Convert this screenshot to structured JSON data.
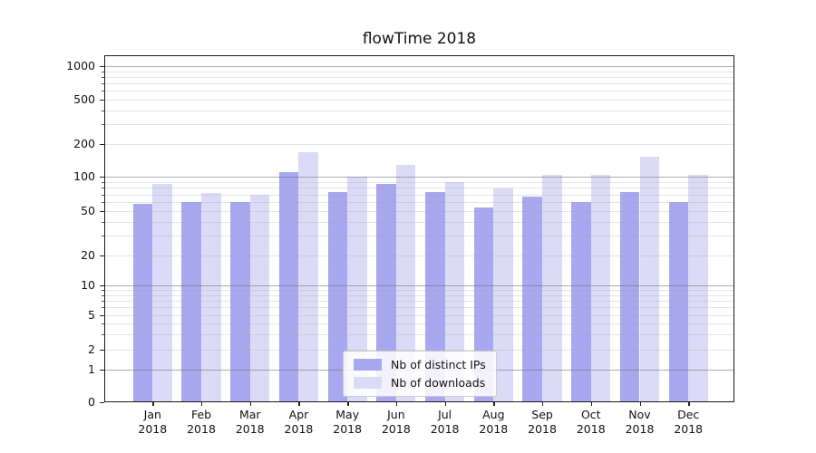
{
  "chart_data": {
    "type": "bar",
    "title": "flowTime 2018",
    "xlabel": "",
    "ylabel": "",
    "yscale": "symlog",
    "grid": "horizontal major+minor, drawn over bars",
    "yticks": [
      0,
      1,
      2,
      5,
      10,
      20,
      50,
      100,
      200,
      500,
      1000
    ],
    "ylim": [
      0,
      1300
    ],
    "categories": [
      "Jan 2018",
      "Feb 2018",
      "Mar 2018",
      "Apr 2018",
      "May 2018",
      "Jun 2018",
      "Jul 2018",
      "Aug 2018",
      "Sep 2018",
      "Oct 2018",
      "Nov 2018",
      "Dec 2018"
    ],
    "series": [
      {
        "name": "Nb of distinct IPs",
        "color": "#a8a8f0",
        "values": [
          58,
          60,
          60,
          110,
          73,
          86,
          73,
          54,
          67,
          60,
          74,
          60
        ]
      },
      {
        "name": "Nb of downloads",
        "color": "#dbdbf8",
        "values": [
          86,
          72,
          70,
          168,
          100,
          128,
          90,
          79,
          103,
          104,
          152,
          104
        ]
      }
    ],
    "legend": {
      "position": "lower center",
      "labels": [
        "Nb of distinct IPs",
        "Nb of downloads"
      ]
    }
  }
}
